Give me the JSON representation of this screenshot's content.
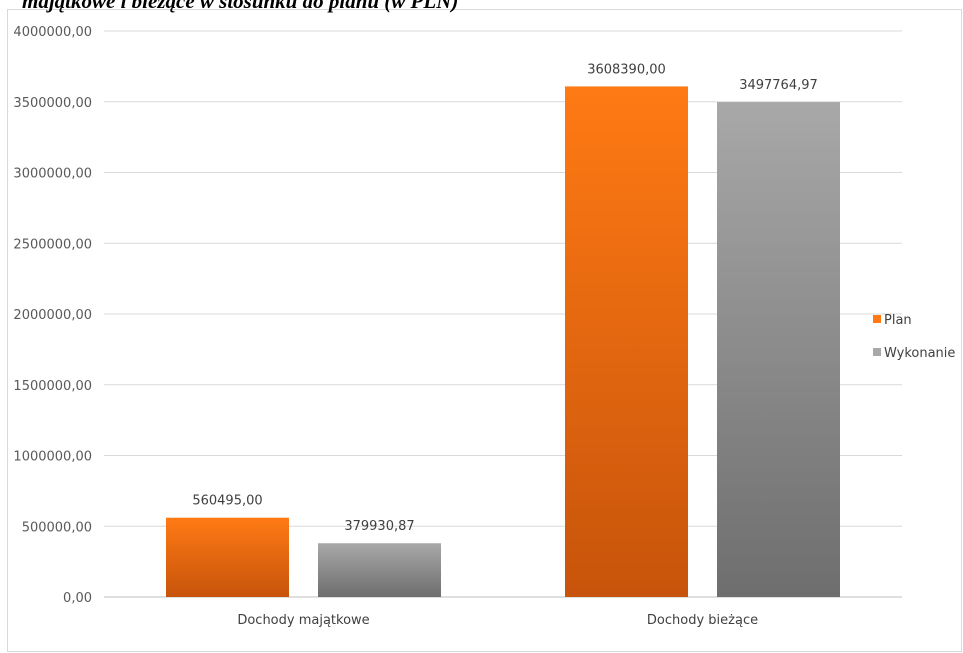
{
  "chart_data": {
    "type": "bar",
    "title": "majątkowe i bieżące w stosunku do planu (w PLN)",
    "categories": [
      "Dochody majątkowe",
      "Dochody bieżące"
    ],
    "series": [
      {
        "name": "Plan",
        "values": [
          560495.0,
          3608390.0
        ],
        "labels": [
          "560495,00",
          "3608390,00"
        ],
        "color": "#ff7a14",
        "color_dark": "#c7540b"
      },
      {
        "name": "Wykonanie",
        "values": [
          379930.87,
          3497764.97
        ],
        "labels": [
          "379930,87",
          "3497764,97"
        ],
        "color": "#a8a8a8",
        "color_dark": "#6e6e6e"
      }
    ],
    "ylim": [
      0,
      4000000
    ],
    "yticks": [
      {
        "value": 0,
        "label": "0,00"
      },
      {
        "value": 500000,
        "label": "500000,00"
      },
      {
        "value": 1000000,
        "label": "1000000,00"
      },
      {
        "value": 1500000,
        "label": "1500000,00"
      },
      {
        "value": 2000000,
        "label": "2000000,00"
      },
      {
        "value": 2500000,
        "label": "2500000,00"
      },
      {
        "value": 3000000,
        "label": "3000000,00"
      },
      {
        "value": 3500000,
        "label": "3500000,00"
      },
      {
        "value": 4000000,
        "label": "4000000,00"
      }
    ],
    "grid": true,
    "legend_position": "right",
    "xlabel": "",
    "ylabel": ""
  }
}
